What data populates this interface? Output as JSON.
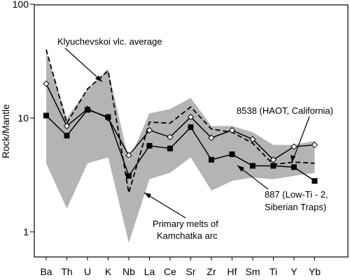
{
  "chart_data": {
    "type": "line",
    "ylabel": "Rock/Mantle",
    "yscale": "log",
    "ylim": [
      0.6,
      100
    ],
    "yticks": [
      "1",
      "10",
      "100"
    ],
    "categories": [
      "Ba",
      "Th",
      "U",
      "K",
      "Nb",
      "La",
      "Ce",
      "Sr",
      "Zr",
      "Hf",
      "Sm",
      "Ti",
      "Y",
      "Yb"
    ],
    "grid": false,
    "band": {
      "upper": [
        38.0,
        10.0,
        18.0,
        27.0,
        4.2,
        11.0,
        12.0,
        15.0,
        8.5,
        8.5,
        7.5,
        5.8,
        5.8,
        6.3
      ],
      "lower": [
        4.0,
        1.6,
        4.0,
        4.5,
        0.8,
        2.9,
        3.3,
        4.5,
        2.3,
        2.8,
        3.0,
        2.9,
        3.1,
        3.3
      ],
      "color": "#b4b4b4"
    },
    "series": [
      {
        "key": "klyuchevskoi",
        "style": "dashed",
        "color": "#000000",
        "values": [
          40.0,
          9.0,
          18.0,
          26.0,
          2.2,
          9.2,
          9.0,
          12.5,
          8.0,
          7.5,
          6.0,
          3.9,
          4.1,
          4.0
        ]
      },
      {
        "key": "haot_8538",
        "style": "solid-open-diamond",
        "color": "#000000",
        "values": [
          20.0,
          8.5,
          12.0,
          10.0,
          4.7,
          7.8,
          6.8,
          10.2,
          6.7,
          7.8,
          6.5,
          4.3,
          5.6,
          5.8
        ]
      },
      {
        "key": "low_ti_887",
        "style": "solid-filled-square",
        "color": "#000000",
        "values": [
          10.5,
          7.0,
          11.8,
          10.2,
          3.1,
          5.7,
          5.4,
          8.3,
          4.3,
          4.8,
          3.8,
          3.8,
          3.7,
          2.8
        ]
      }
    ],
    "annotations": [
      {
        "text": "Klyuchevskoi vlc. average"
      },
      {
        "text": "8538 (HAOT, California)"
      },
      {
        "text": "887 (Low-Ti - 2,",
        "text2": "Siberian Traps)"
      },
      {
        "text": "Primary melts of",
        "text2": "Kamchatka arc"
      }
    ]
  }
}
